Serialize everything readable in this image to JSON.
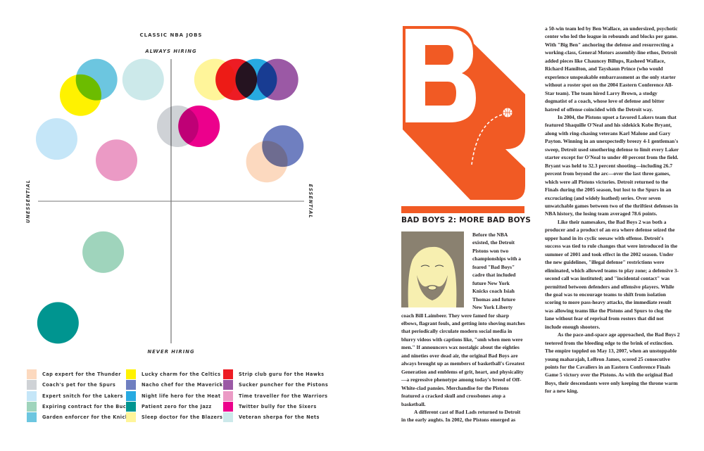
{
  "chart_data": {
    "type": "scatter",
    "title": "CLASSIC NBA JOBS",
    "y_top_label": "ALWAYS HIRING",
    "y_bottom_label": "NEVER HIRING",
    "x_left_label": "UNESSENTIAL",
    "x_right_label": "ESSENTIAL",
    "xlim": [
      -1,
      1
    ],
    "ylim": [
      -1,
      1
    ],
    "grid": false,
    "legend_position": "bottom",
    "points": [
      {
        "name": "Cap expert for the Thunder",
        "color": "#fcd9bf",
        "x": 0.72,
        "y": 0.28
      },
      {
        "name": "Coach's pet for the Spurs",
        "color": "#cfd2d6",
        "x": 0.05,
        "y": 0.53
      },
      {
        "name": "Expert snitch for the Lakers",
        "color": "#c5e6f8",
        "x": -0.86,
        "y": 0.44
      },
      {
        "name": "Expiring contract for the Bucks",
        "color": "#9fd4bc",
        "x": -0.51,
        "y": -0.36
      },
      {
        "name": "Garden enforcer for the Knicks",
        "color": "#6cc6e0",
        "x": -0.56,
        "y": 0.86
      },
      {
        "name": "Lucky charm for the Celtics",
        "color": "#fff200",
        "x": -0.68,
        "y": 0.75
      },
      {
        "name": "Nacho chef for the Mavericks",
        "color": "#6f7fc0",
        "x": 0.84,
        "y": 0.39
      },
      {
        "name": "Night life hero for the Heat",
        "color": "#27aae1",
        "x": 0.64,
        "y": 0.86
      },
      {
        "name": "Patient zero for the Jazz",
        "color": "#009590",
        "x": -0.85,
        "y": -0.86
      },
      {
        "name": "Sleep doctor for the Blazers",
        "color": "#fff59a",
        "x": 0.33,
        "y": 0.86
      },
      {
        "name": "Strip club guru for the Hawks",
        "color": "#ed1c24",
        "x": 0.49,
        "y": 0.86
      },
      {
        "name": "Sucker puncher for the Pistons",
        "color": "#9b59a5",
        "x": 0.8,
        "y": 0.86
      },
      {
        "name": "Time traveller for the Warriors",
        "color": "#eb9ac5",
        "x": -0.41,
        "y": 0.29
      },
      {
        "name": "Twitter bully for the Sixers",
        "color": "#ec008c",
        "x": 0.21,
        "y": 0.53
      },
      {
        "name": "Veteran sherpa for the Nets",
        "color": "#cce9ea",
        "x": -0.21,
        "y": 0.86
      }
    ]
  },
  "article": {
    "drop_letter": "B",
    "accent_color": "#f15a24",
    "heading": "BAD BOYS 2: MORE BAD BOYS",
    "left_paragraphs": [
      "Before the NBA existed, the Detroit Pistons won two championships with a feared \"Bad Boys\" cadre that included future New York Knicks coach Isiah Thomas and future New York Liberty coach Bill Laimbeer. They were famed for sharp elbows, flagrant fouls, and getting into shoving matches that periodically circulate modern social media in blurry videos with captions like, \"smh when men were men.\" If announcers wax nostalgic about the eighties and nineties over dead air, the original Bad Boys are always brought up as members of basketball's Greatest Generation and emblems of grit, heart, and physicality—a regressive phenotype among today's breed of Off-White-clad pansies. Merchandise for the Pistons featured a cracked skull and crossbones atop a basketball.",
      "A different cast of Bad Lads returned to Detroit in the early aughts. In 2002, the Pistons emerged as"
    ],
    "right_paragraphs": [
      "a 50-win team led by Ben Wallace, an undersized, psychotic center who led the league in rebounds and blocks per game. With \"Big Ben\" anchoring the defense and resurrecting a working-class, General Motors assembly-line ethos, Detroit added pieces like Chauncey Billups, Rasheed Wallace, Richard Hamilton, and Tayshaun Prince (who would experience unspeakable embarrassment as the only starter without a roster spot on the 2004 Eastern Conference All-Star team). The team hired Larry Brown, a stodgy dogmatist of a coach, whose love of defense and bitter hatred of offense coincided with the Detroit way.",
      "In 2004, the Pistons upset a favored Lakers team that featured Shaquille O'Neal and his sidekick Kobe Bryant, along with ring-chasing veterans Karl Malone and Gary Payton. Winning in an unexpectedly breezy 4-1 gentleman's sweep, Detroit used smothering defense to limit every Laker starter except for O'Neal to under 40 percent from the field. Bryant was held to 32.3 percent shooting—including 26.7 percent from beyond the arc—over the last three games, which were all Pistons victories. Detroit returned to the Finals during the 2005 season, but lost to the Spurs in an excruciating (and widely loathed) series. Over seven unwatchable games between two of the thriftiest defenses in NBA history, the losing team averaged 78.6 points.",
      "Like their namesakes, the Bad Boys 2 was both a producer and a product of an era where defense seized the upper hand in its cyclic seesaw with offense. Detroit's success was tied to rule changes that were introduced in the summer of 2001 and took effect in the 2002 season. Under the new guidelines, \"illegal defense\" restrictions were eliminated, which allowed teams to play zone; a defensive 3-second call was instituted; and \"incidental contact\" was permitted between defenders and offensive players. While the goal was to encourage teams to shift from isolation scoring to more pass-heavy attacks, the immediate result was allowing teams like the Pistons and Spurs to clog the lane without fear of reprisal from rosters that did not include enough shooters.",
      "As the pace-and-space age approached, the Bad Boys 2 teetered from the bleeding edge to the brink of extinction. The empire toppled on May 13, 2007, when an unstoppable young maharajah, LeBron James, scored 25 consecutive points for the Cavaliers in an Eastern Conference Finals Game 5 victory over the Pistons. As with the original Bad Boys, their descendants were only keeping the throne warm for a new king."
    ]
  }
}
